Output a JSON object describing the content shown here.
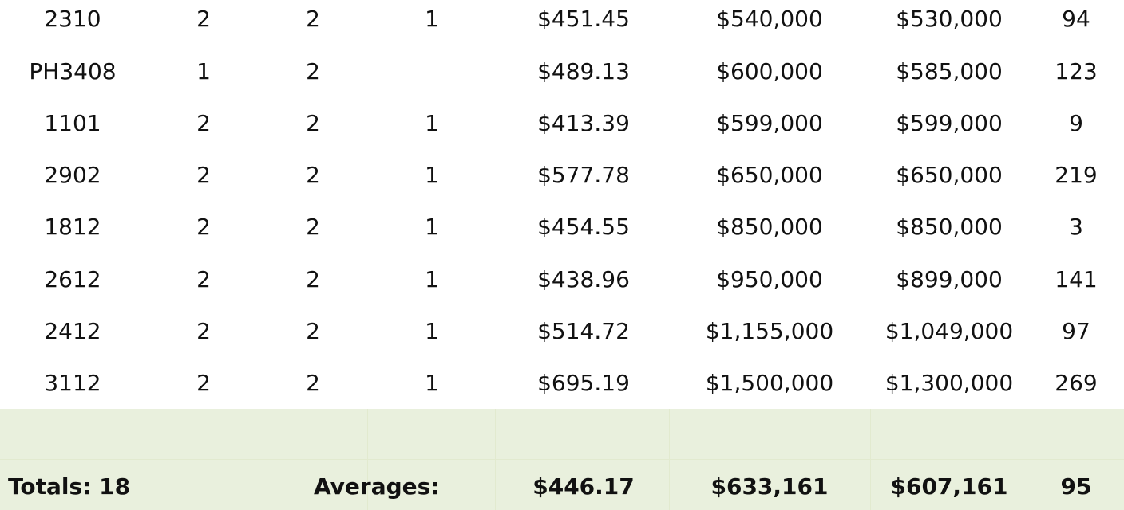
{
  "rows": [
    [
      "2310",
      "2",
      "2",
      "1",
      "$451.45",
      "$540,000",
      "$530,000",
      "94"
    ],
    [
      "PH3408",
      "1",
      "2",
      "",
      "$489.13",
      "$600,000",
      "$585,000",
      "123"
    ],
    [
      "1101",
      "2",
      "2",
      "1",
      "$413.39",
      "$599,000",
      "$599,000",
      "9"
    ],
    [
      "2902",
      "2",
      "2",
      "1",
      "$577.78",
      "$650,000",
      "$650,000",
      "219"
    ],
    [
      "1812",
      "2",
      "2",
      "1",
      "$454.55",
      "$850,000",
      "$850,000",
      "3"
    ],
    [
      "2612",
      "2",
      "2",
      "1",
      "$438.96",
      "$950,000",
      "$899,000",
      "141"
    ],
    [
      "2412",
      "2",
      "2",
      "1",
      "$514.72",
      "$1,155,000",
      "$1,049,000",
      "97"
    ],
    [
      "3112",
      "2",
      "2",
      "1",
      "$695.19",
      "$1,500,000",
      "$1,300,000",
      "269"
    ]
  ],
  "footer": {
    "totals_label": "Totals: 18",
    "averages_label": "Averages:",
    "avg_price_per_sqft": "$446.17",
    "avg_list_price": "$633,161",
    "avg_sold_price": "$607,161",
    "avg_days": "95"
  },
  "colors": {
    "footer_background": "#e9f0dd"
  }
}
